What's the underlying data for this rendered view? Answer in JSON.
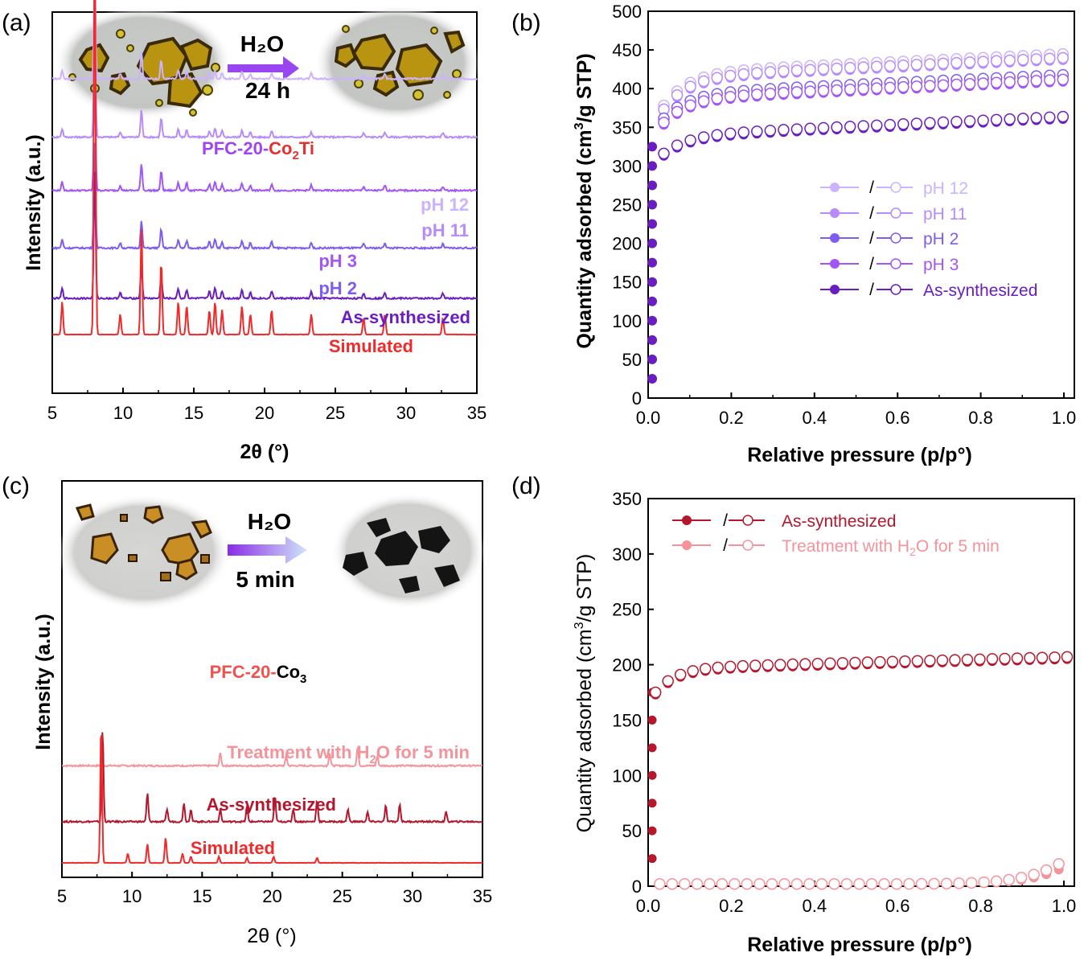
{
  "panel_labels": [
    "(a)",
    "(b)",
    "(c)",
    "(d)"
  ],
  "colors": {
    "pH12": "#ccb3ff",
    "pH11": "#b78bfb",
    "pH3": "#a256f3",
    "pH2": "#7f5cf0",
    "as_synth_purple": "#6a1ec0",
    "simulated": "#f02a2a",
    "treat_red": "#f5939b",
    "as_synth_red": "#b5172d",
    "sim_red": "#ee2a2a",
    "arrow_purple": "#9a46f0",
    "arrow_gradient_start": "#8a2ce8",
    "arrow_gradient_end": "#d0e4f8"
  },
  "chart_data": [
    {
      "panel": "(a)",
      "type": "line",
      "xlabel": "2θ (°)",
      "ylabel": "Intensity (a.u.)",
      "xlim": [
        5,
        35
      ],
      "xticks": [
        5,
        10,
        15,
        20,
        25,
        30,
        35
      ],
      "inset": {
        "reagent": "H₂O",
        "time": "24 h"
      },
      "compound": {
        "prefix": "PFC-20-",
        "metal": "Co",
        "subscript": "2",
        "suffix": "Ti"
      },
      "peaks": [
        {
          "x": 5.7,
          "h": 0.08
        },
        {
          "x": 8.0,
          "h": 1.0
        },
        {
          "x": 9.8,
          "h": 0.05
        },
        {
          "x": 11.3,
          "h": 0.26
        },
        {
          "x": 12.7,
          "h": 0.18
        },
        {
          "x": 13.9,
          "h": 0.08
        },
        {
          "x": 14.5,
          "h": 0.07
        },
        {
          "x": 16.1,
          "h": 0.06
        },
        {
          "x": 16.5,
          "h": 0.08
        },
        {
          "x": 17.0,
          "h": 0.06
        },
        {
          "x": 18.4,
          "h": 0.07
        },
        {
          "x": 19.0,
          "h": 0.05
        },
        {
          "x": 20.5,
          "h": 0.06
        },
        {
          "x": 23.3,
          "h": 0.05
        },
        {
          "x": 27.0,
          "h": 0.04
        },
        {
          "x": 28.5,
          "h": 0.05
        },
        {
          "x": 32.6,
          "h": 0.04
        }
      ],
      "series": [
        {
          "name": "pH 12",
          "offset": 0.825,
          "scale": 0.25
        },
        {
          "name": "pH 11",
          "offset": 0.672,
          "scale": 0.25
        },
        {
          "name": "pH 3",
          "offset": 0.532,
          "scale": 0.25
        },
        {
          "name": "pH 2",
          "offset": 0.381,
          "scale": 0.25
        },
        {
          "name": "As-synthesized",
          "offset": 0.249,
          "scale": 0.3
        },
        {
          "name": "Simulated",
          "offset": 0.154,
          "scale": 0.98
        }
      ]
    },
    {
      "panel": "(b)",
      "type": "scatter",
      "xlabel": "Relative pressure (p/p°)",
      "ylabel_parts": {
        "pre": "Quantity adsorbed (cm",
        "sup": "3",
        "post": "/g STP)"
      },
      "xlim": [
        0.0,
        1.0
      ],
      "ylim": [
        0,
        500
      ],
      "xticks": [
        0.0,
        0.2,
        0.4,
        0.6,
        0.8,
        1.0
      ],
      "yticks": [
        0,
        50,
        100,
        150,
        200,
        250,
        300,
        350,
        400,
        450,
        500
      ],
      "legend_separator": "/",
      "series": [
        {
          "name": "pH 12",
          "plateau": 445,
          "knee": 375
        },
        {
          "name": "pH 11",
          "plateau": 440,
          "knee": 370
        },
        {
          "name": "pH 2",
          "plateau": 418,
          "knee": 365
        },
        {
          "name": "pH 3",
          "plateau": 412,
          "knee": 360
        },
        {
          "name": "As-synthesized",
          "plateau": 364,
          "knee": 325
        }
      ]
    },
    {
      "panel": "(c)",
      "type": "line",
      "xlabel": "2θ (°)",
      "ylabel": "Intensity (a.u.)",
      "xlim": [
        5,
        35
      ],
      "xticks": [
        5,
        10,
        15,
        20,
        25,
        30,
        35
      ],
      "inset": {
        "reagent": "H₂O",
        "time": "5 min"
      },
      "compound": {
        "prefix": "PFC-20-",
        "metal": "Co",
        "subscript": "3",
        "suffix": ""
      },
      "series": [
        {
          "name_parts": {
            "pre": "Treatment with H",
            "sub": "2",
            "post": "O for 5 min"
          },
          "offset": 0.245,
          "peaks": [
            {
              "x": 16.3,
              "h": 0.02
            },
            {
              "x": 21.0,
              "h": 0.015
            },
            {
              "x": 24.1,
              "h": 0.02
            },
            {
              "x": 26.1,
              "h": 0.03
            },
            {
              "x": 27.5,
              "h": 0.015
            }
          ]
        },
        {
          "name": "As-synthesized",
          "offset": 0.104,
          "peaks": [
            {
              "x": 7.9,
              "h": 0.145
            },
            {
              "x": 11.1,
              "h": 0.045
            },
            {
              "x": 12.5,
              "h": 0.02
            },
            {
              "x": 13.7,
              "h": 0.03
            },
            {
              "x": 14.2,
              "h": 0.02
            },
            {
              "x": 16.3,
              "h": 0.02
            },
            {
              "x": 18.2,
              "h": 0.025
            },
            {
              "x": 20.2,
              "h": 0.04
            },
            {
              "x": 21.5,
              "h": 0.02
            },
            {
              "x": 23.2,
              "h": 0.035
            },
            {
              "x": 25.4,
              "h": 0.02
            },
            {
              "x": 26.8,
              "h": 0.015
            },
            {
              "x": 28.1,
              "h": 0.025
            },
            {
              "x": 29.1,
              "h": 0.028
            },
            {
              "x": 32.4,
              "h": 0.015
            }
          ]
        },
        {
          "name": "Simulated",
          "offset": 0.0,
          "peaks": [
            {
              "x": 7.8,
              "h": 0.22
            },
            {
              "x": 9.7,
              "h": 0.015
            },
            {
              "x": 11.1,
              "h": 0.03
            },
            {
              "x": 12.4,
              "h": 0.04
            },
            {
              "x": 13.6,
              "h": 0.015
            },
            {
              "x": 14.2,
              "h": 0.01
            },
            {
              "x": 16.2,
              "h": 0.01
            },
            {
              "x": 18.2,
              "h": 0.008
            },
            {
              "x": 20.1,
              "h": 0.01
            },
            {
              "x": 23.2,
              "h": 0.008
            }
          ]
        }
      ]
    },
    {
      "panel": "(d)",
      "type": "scatter",
      "xlabel": "Relative pressure (p/p°)",
      "ylabel_parts": {
        "pre": "Quantity adsorbed (cm",
        "sup": "3",
        "post": "/g STP)"
      },
      "xlim": [
        0.0,
        1.0
      ],
      "ylim": [
        0,
        350
      ],
      "xticks": [
        0.0,
        0.2,
        0.4,
        0.6,
        0.8,
        1.0
      ],
      "yticks": [
        0,
        50,
        100,
        150,
        200,
        250,
        300,
        350
      ],
      "legend_separator": "/",
      "series": [
        {
          "name": "As-synthesized",
          "plateau": 207,
          "knee": 180
        },
        {
          "name_parts": {
            "pre": "Treatment with H",
            "sub": "2",
            "post": "O for 5 min"
          },
          "final": 25
        }
      ]
    }
  ]
}
